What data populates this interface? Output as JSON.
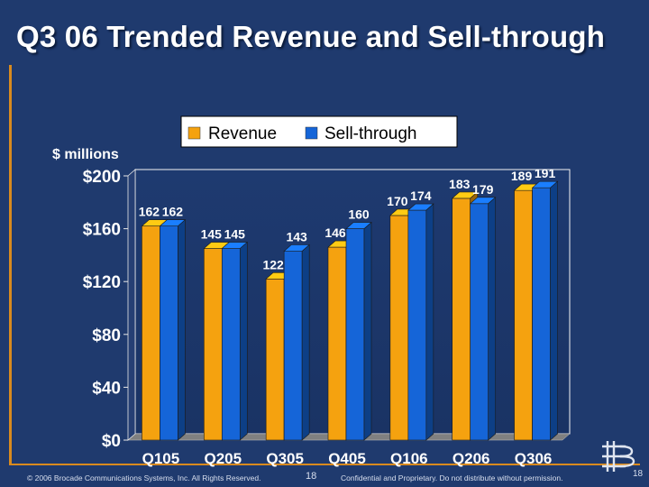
{
  "slide": {
    "title": "Q3 06 Trended Revenue and Sell-through"
  },
  "chart_data": {
    "type": "bar",
    "categories": [
      "Q105",
      "Q205",
      "Q305",
      "Q405",
      "Q106",
      "Q206",
      "Q306"
    ],
    "series": [
      {
        "name": "Revenue",
        "color": "#f5a20f",
        "values": [
          162,
          145,
          122,
          146,
          170,
          183,
          189
        ]
      },
      {
        "name": "Sell-through",
        "color": "#1565d8",
        "values": [
          162,
          145,
          143,
          160,
          174,
          179,
          191
        ]
      }
    ],
    "ylabel": "$ millions",
    "ylim": [
      0,
      200
    ],
    "yticks": [
      0,
      40,
      80,
      120,
      160,
      200
    ],
    "ytick_labels": [
      "$0",
      "$40",
      "$80",
      "$120",
      "$160",
      "$200"
    ],
    "legend_position": "top",
    "grid": false
  },
  "footer": {
    "copyright": "© 2006 Brocade Communications Systems, Inc. All Rights Reserved.",
    "center_page": "18",
    "confidential": "Confidential and Proprietary. Do not distribute without permission.",
    "right_page": "18"
  },
  "logo": {
    "icon": "brocade-logo-icon"
  }
}
